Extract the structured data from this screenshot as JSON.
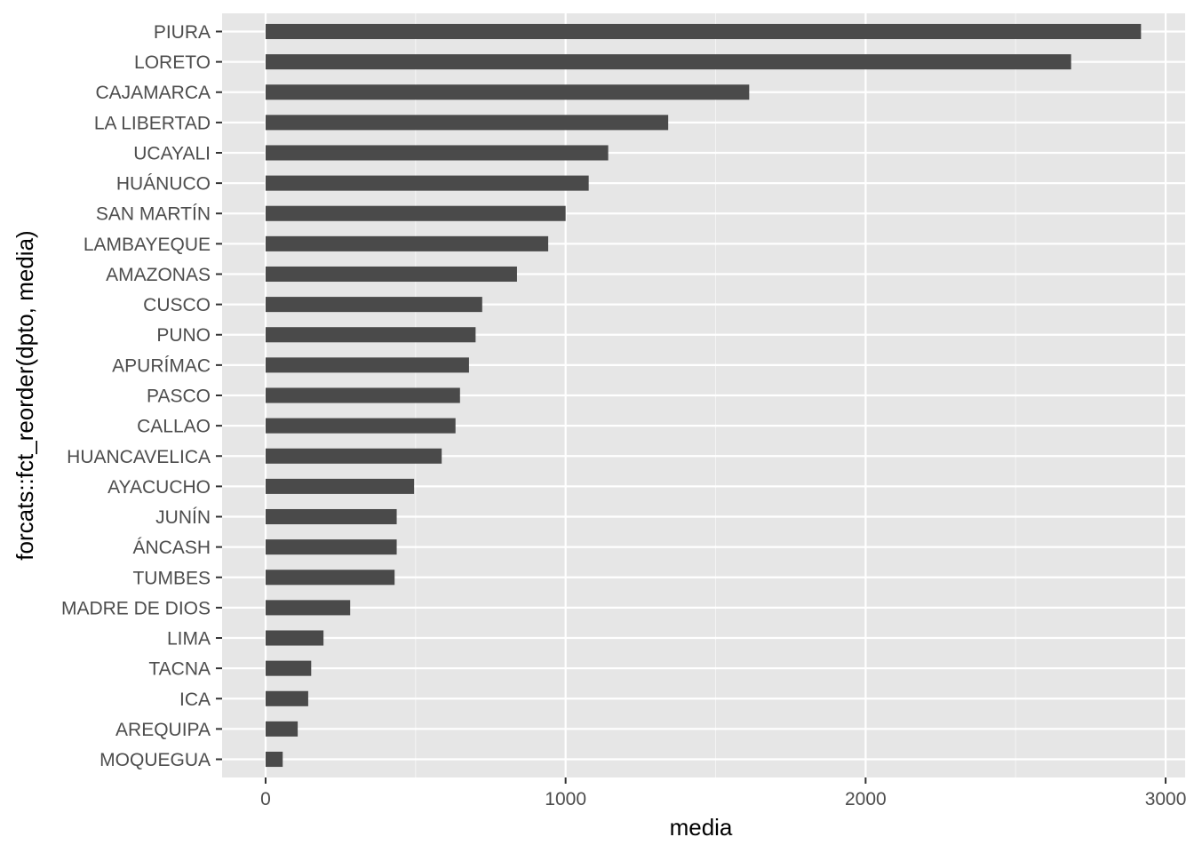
{
  "chart_data": {
    "type": "bar",
    "orientation": "horizontal",
    "xlabel": "media",
    "ylabel": "forcats::fct_reorder(dpto, media)",
    "xlim": [
      -145,
      3065
    ],
    "x_ticks": [
      0,
      1000,
      2000,
      3000
    ],
    "x_tick_labels": [
      "0",
      "1000",
      "2000",
      "3000"
    ],
    "grid": true,
    "categories": [
      "PIURA",
      "LORETO",
      "CAJAMARCA",
      "LA LIBERTAD",
      "UCAYALI",
      "HUÁNUCO",
      "SAN MARTÍN",
      "LAMBAYEQUE",
      "AMAZONAS",
      "CUSCO",
      "PUNO",
      "APURÍMAC",
      "PASCO",
      "CALLAO",
      "HUANCAVELICA",
      "AYACUCHO",
      "JUNÍN",
      "ÁNCASH",
      "TUMBES",
      "MADRE DE DIOS",
      "LIMA",
      "TACNA",
      "ICA",
      "AREQUIPA",
      "MOQUEGUA"
    ],
    "values": [
      2918,
      2685,
      1612,
      1342,
      1142,
      1077,
      1000,
      942,
      838,
      722,
      700,
      678,
      648,
      633,
      587,
      495,
      437,
      437,
      430,
      282,
      193,
      152,
      142,
      107,
      57
    ],
    "colors": {
      "bar": "#4a4a4a",
      "panel": "#e6e6e6",
      "grid": "#ffffff",
      "tick_text": "#4d4d4d"
    }
  }
}
